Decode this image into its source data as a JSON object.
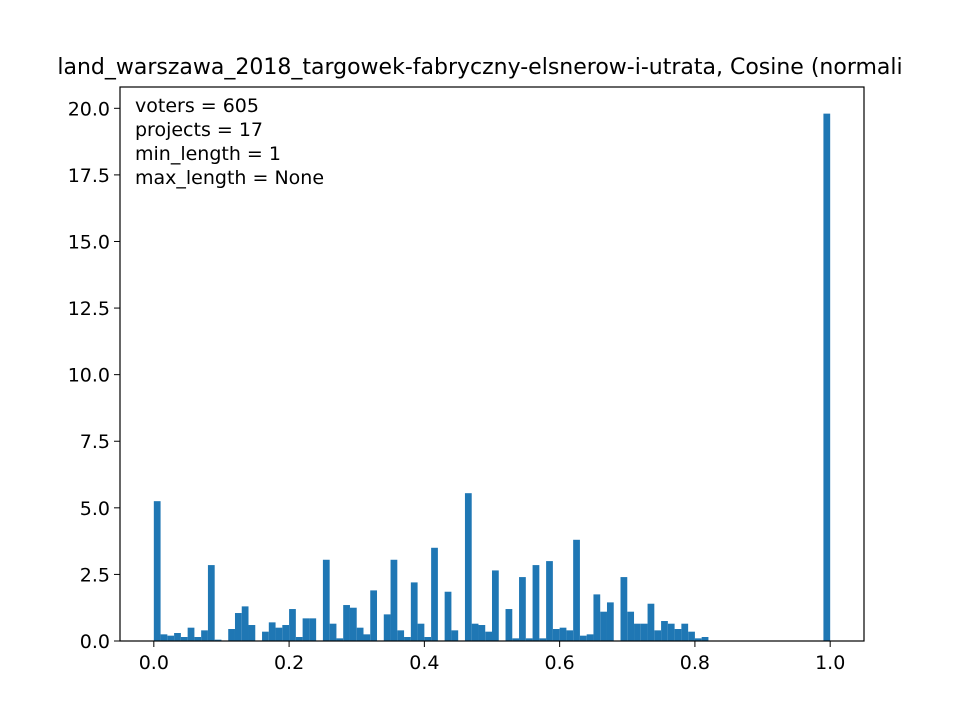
{
  "chart_data": {
    "type": "bar",
    "title": "land_warszawa_2018_targowek-fabryczny-elsnerow-i-utrata, Cosine (normali",
    "xlabel": "",
    "ylabel": "",
    "xlim": [
      -0.05,
      1.05
    ],
    "ylim": [
      0,
      20.8
    ],
    "bin_width": 0.01,
    "bar_color": "#1f77b4",
    "x_ticks": [
      0.0,
      0.2,
      0.4,
      0.6,
      0.8,
      1.0
    ],
    "x_tick_labels": [
      "0.0",
      "0.2",
      "0.4",
      "0.6",
      "0.8",
      "1.0"
    ],
    "y_ticks": [
      0,
      2.5,
      5,
      7.5,
      10,
      12.5,
      15,
      17.5,
      20
    ],
    "y_tick_labels": [
      "0.0",
      "2.5",
      "5.0",
      "7.5",
      "10.0",
      "12.5",
      "15.0",
      "17.5",
      "20.0"
    ],
    "annotations": [
      "voters = 605",
      "projects = 17",
      "min_length = 1",
      "max_length = None"
    ],
    "annotation_position": "top-left",
    "grid": false,
    "legend": false,
    "bins_left": [
      0.0,
      0.01,
      0.02,
      0.03,
      0.04,
      0.05,
      0.06,
      0.07,
      0.08,
      0.09,
      0.11,
      0.12,
      0.13,
      0.14,
      0.16,
      0.17,
      0.18,
      0.19,
      0.2,
      0.21,
      0.22,
      0.23,
      0.25,
      0.26,
      0.27,
      0.28,
      0.29,
      0.3,
      0.31,
      0.32,
      0.34,
      0.35,
      0.36,
      0.37,
      0.38,
      0.39,
      0.4,
      0.41,
      0.43,
      0.44,
      0.46,
      0.47,
      0.48,
      0.49,
      0.5,
      0.52,
      0.53,
      0.54,
      0.55,
      0.56,
      0.57,
      0.58,
      0.59,
      0.6,
      0.61,
      0.62,
      0.63,
      0.64,
      0.65,
      0.66,
      0.67,
      0.69,
      0.7,
      0.71,
      0.72,
      0.73,
      0.74,
      0.75,
      0.76,
      0.77,
      0.78,
      0.79,
      0.8,
      0.81,
      0.99
    ],
    "values": [
      5.25,
      0.25,
      0.2,
      0.3,
      0.15,
      0.5,
      0.15,
      0.4,
      2.85,
      0.05,
      0.45,
      1.05,
      1.3,
      0.6,
      0.35,
      0.7,
      0.5,
      0.6,
      1.2,
      0.15,
      0.85,
      0.85,
      3.05,
      0.65,
      0.1,
      1.35,
      1.25,
      0.5,
      0.25,
      1.9,
      1.0,
      3.05,
      0.4,
      0.15,
      2.2,
      0.65,
      0.15,
      3.5,
      1.85,
      0.4,
      5.55,
      0.65,
      0.6,
      0.35,
      2.65,
      1.2,
      0.1,
      2.4,
      0.1,
      2.85,
      0.1,
      3.0,
      0.45,
      0.5,
      0.4,
      3.8,
      0.2,
      0.25,
      1.75,
      1.1,
      1.45,
      2.4,
      1.1,
      0.65,
      0.65,
      1.4,
      0.4,
      0.75,
      0.65,
      0.45,
      0.65,
      0.35,
      0.1,
      0.15,
      19.8
    ]
  }
}
